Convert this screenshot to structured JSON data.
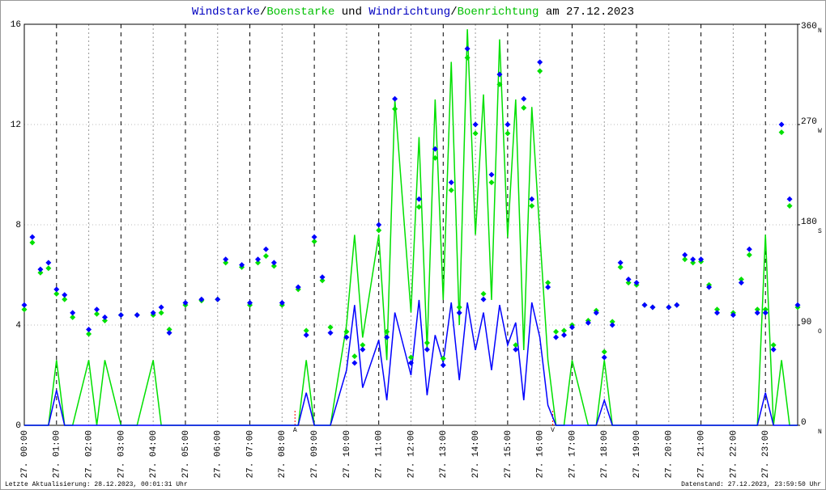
{
  "chart_data": {
    "type": "wind",
    "title_parts": [
      {
        "text": "Windstarke",
        "color": "#0000c0"
      },
      {
        "text": "/",
        "color": "#000000"
      },
      {
        "text": "Boenstarke",
        "color": "#00c000"
      },
      {
        "text": " und ",
        "color": "#000000"
      },
      {
        "text": "Windrichtung",
        "color": "#0000c0"
      },
      {
        "text": "/",
        "color": "#000000"
      },
      {
        "text": "Boenrichtung",
        "color": "#00c000"
      },
      {
        "text": " am 27.12.2023",
        "color": "#000000"
      }
    ],
    "footer_left": "Letzte Aktualisierung: 28.12.2023, 00:01:31 Uhr",
    "footer_right": "Datenstand: 27.12.2023, 23:59:50 Uhr",
    "xlim": [
      0,
      24
    ],
    "xticks": [
      {
        "value": 0,
        "label": "27. 00:00"
      },
      {
        "value": 1,
        "label": "27. 01:00"
      },
      {
        "value": 2,
        "label": "27. 02:00"
      },
      {
        "value": 3,
        "label": "27. 03:00"
      },
      {
        "value": 4,
        "label": "27. 04:00"
      },
      {
        "value": 5,
        "label": "27. 05:00"
      },
      {
        "value": 6,
        "label": "27. 06:00"
      },
      {
        "value": 7,
        "label": "27. 07:00"
      },
      {
        "value": 8,
        "label": "27. 08:00"
      },
      {
        "value": 9,
        "label": "27. 09:00"
      },
      {
        "value": 10,
        "label": "27. 10:00"
      },
      {
        "value": 11,
        "label": "27. 11:00"
      },
      {
        "value": 12,
        "label": "27. 12:00"
      },
      {
        "value": 13,
        "label": "27. 13:00"
      },
      {
        "value": 14,
        "label": "27. 14:00"
      },
      {
        "value": 15,
        "label": "27. 15:00"
      },
      {
        "value": 16,
        "label": "27. 16:00"
      },
      {
        "value": 17,
        "label": "27. 17:00"
      },
      {
        "value": 18,
        "label": "27. 18:00"
      },
      {
        "value": 19,
        "label": "27. 19:00"
      },
      {
        "value": 20,
        "label": "27. 20:00"
      },
      {
        "value": 21,
        "label": "27. 21:00"
      },
      {
        "value": 22,
        "label": "27. 22:00"
      },
      {
        "value": 23,
        "label": "27. 23:00"
      }
    ],
    "ylim": [
      0,
      16
    ],
    "yticks": [
      0,
      4,
      8,
      12,
      16
    ],
    "y2lim": [
      0,
      360
    ],
    "y2ticks": [
      0,
      90,
      180,
      270,
      360
    ],
    "y2_compass": [
      "N",
      "O",
      "S",
      "W",
      "N"
    ],
    "annotations": [
      {
        "text": "A",
        "x": 8.4,
        "color": "#ff0000"
      },
      {
        "text": "V",
        "x": 16.4,
        "color": "#ff0000"
      }
    ],
    "x": [
      0,
      0.25,
      0.5,
      0.75,
      1,
      1.25,
      1.5,
      2,
      2.25,
      2.5,
      3,
      3.5,
      4,
      4.25,
      4.5,
      5,
      5.5,
      6,
      6.25,
      6.75,
      7,
      7.25,
      7.5,
      7.75,
      8,
      8.5,
      8.75,
      9,
      9.25,
      9.5,
      10,
      10.25,
      10.5,
      11,
      11.25,
      11.5,
      12,
      12.25,
      12.5,
      12.75,
      13,
      13.25,
      13.5,
      13.75,
      14,
      14.25,
      14.5,
      14.75,
      15,
      15.25,
      15.5,
      15.75,
      16,
      16.25,
      16.5,
      16.75,
      17,
      17.5,
      17.75,
      18,
      18.25,
      18.5,
      18.75,
      19,
      19.25,
      19.5,
      20,
      20.25,
      20.5,
      20.75,
      21,
      21.25,
      21.5,
      22,
      22.25,
      22.5,
      22.75,
      23,
      23.25,
      23.5,
      23.75,
      24
    ],
    "series": [
      {
        "name": "Boenstarke",
        "kind": "line",
        "color": "#00e000",
        "values": [
          0,
          0,
          0,
          0,
          2.6,
          0,
          0,
          2.6,
          0,
          2.6,
          0,
          0,
          2.6,
          0,
          0,
          0,
          0,
          0,
          0,
          0,
          0,
          0,
          0,
          0,
          0,
          0,
          2.6,
          0,
          0,
          0,
          4.0,
          7.6,
          3.5,
          7.6,
          2.6,
          13.0,
          4.5,
          11.5,
          3.0,
          13.0,
          5.0,
          14.5,
          4.0,
          15.8,
          7.6,
          13.2,
          5.0,
          15.4,
          7.5,
          13.0,
          3.0,
          12.7,
          7.6,
          2.6,
          0,
          0,
          2.6,
          0,
          0,
          2.6,
          0,
          0,
          0,
          0,
          0,
          0,
          0,
          0,
          0,
          0,
          0,
          0,
          0,
          0,
          0,
          0,
          0,
          7.6,
          0,
          2.6,
          0,
          0
        ]
      },
      {
        "name": "Windstarke",
        "kind": "line",
        "color": "#0000ff",
        "values": [
          0,
          0,
          0,
          0,
          1.4,
          0,
          0,
          0,
          0,
          0,
          0,
          0,
          0,
          0,
          0,
          0,
          0,
          0,
          0,
          0,
          0,
          0,
          0,
          0,
          0,
          0,
          1.3,
          0,
          0,
          0,
          2.2,
          4.8,
          1.5,
          3.4,
          1.0,
          4.5,
          2.0,
          5.0,
          1.2,
          3.6,
          2.5,
          4.9,
          1.8,
          4.9,
          3.0,
          4.5,
          2.2,
          4.8,
          3.2,
          4.1,
          1.0,
          4.9,
          3.5,
          0.8,
          0,
          0,
          0,
          0,
          0,
          1.0,
          0,
          0,
          0,
          0,
          0,
          0,
          0,
          0,
          0,
          0,
          0,
          0,
          0,
          0,
          0,
          0,
          0,
          1.3,
          0,
          0,
          0,
          0
        ]
      },
      {
        "name": "Boenrichtung",
        "kind": "points",
        "axis": "y2",
        "color": "#00e000",
        "values": [
          104,
          164,
          137,
          141,
          118,
          113,
          97,
          82,
          100,
          94,
          99,
          99,
          99,
          101,
          86,
          108,
          112,
          113,
          146,
          142,
          108,
          146,
          152,
          143,
          108,
          122,
          85,
          165,
          130,
          88,
          84,
          62,
          72,
          175,
          84,
          284,
          61,
          196,
          74,
          240,
          60,
          211,
          106,
          330,
          262,
          118,
          218,
          306,
          262,
          72,
          285,
          197,
          318,
          128,
          84,
          85,
          90,
          94,
          103,
          66,
          93,
          142,
          128,
          126,
          108,
          106,
          106,
          108,
          149,
          146,
          147,
          126,
          104,
          101,
          131,
          153,
          104,
          104,
          72,
          263,
          197,
          106
        ]
      },
      {
        "name": "Windrichtung",
        "kind": "points",
        "axis": "y2",
        "color": "#0000ff",
        "values": [
          108,
          169,
          140,
          146,
          122,
          117,
          101,
          86,
          104,
          97,
          99,
          99,
          101,
          106,
          83,
          110,
          113,
          113,
          149,
          144,
          110,
          149,
          158,
          146,
          110,
          124,
          81,
          169,
          133,
          83,
          79,
          56,
          68,
          180,
          79,
          293,
          56,
          203,
          68,
          248,
          54,
          218,
          101,
          338,
          270,
          113,
          225,
          315,
          270,
          68,
          293,
          203,
          326,
          124,
          79,
          81,
          88,
          92,
          101,
          61,
          90,
          146,
          131,
          128,
          108,
          106,
          106,
          108,
          153,
          149,
          149,
          124,
          101,
          99,
          128,
          158,
          101,
          101,
          68,
          270,
          203,
          108
        ]
      }
    ]
  }
}
